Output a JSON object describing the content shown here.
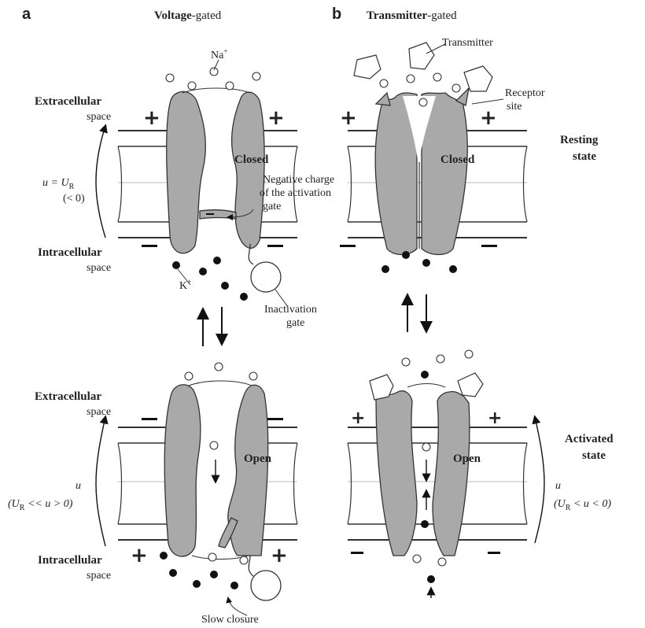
{
  "panels": {
    "a": {
      "letter": "a",
      "title_bold": "Voltage",
      "title_rest": "-gated"
    },
    "b": {
      "letter": "b",
      "title_bold": "Transmitter",
      "title_rest": "-gated"
    }
  },
  "labels": {
    "extracellular": "Extracellular",
    "intracellular": "Intracellular",
    "space": "space",
    "closed": "Closed",
    "open": "Open",
    "na": "Na",
    "k": "K",
    "plus": "+",
    "transmitter": "Transmitter",
    "receptor_1": "Receptor",
    "receptor_2": "site",
    "neg_charge_1": "Negative charge",
    "neg_charge_2": "of the activation",
    "neg_charge_3": "gate",
    "inactivation_1": "Inactivation",
    "inactivation_2": "gate",
    "slow_closure": "Slow closure",
    "resting_1": "Resting",
    "resting_2": "state",
    "activated_1": "Activated",
    "activated_2": "state",
    "u_eq_ur": "u = U",
    "sub_r": "R",
    "lt_zero": "(< 0)",
    "u": "u",
    "u_range_a_open": "(U",
    "u_range_a_rest": " << u > 0)",
    "u_range_b_open": "(U",
    "u_range_b_rest": " < u < 0)"
  },
  "colors": {
    "protein": "#a9a9a9",
    "outline": "#333333",
    "ion_dark": "#111111",
    "background": "#ffffff"
  }
}
